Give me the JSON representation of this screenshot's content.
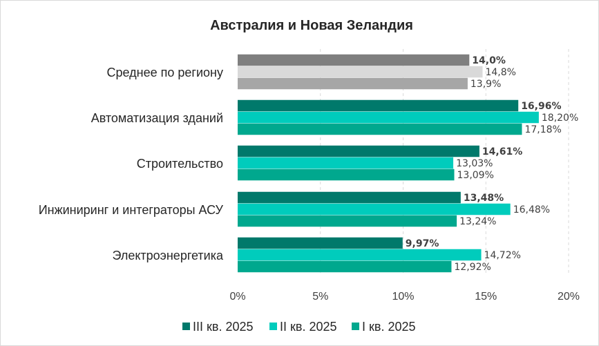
{
  "chart_data": {
    "type": "bar",
    "orientation": "horizontal",
    "title": "Австралия и Новая Зеландия",
    "categories": [
      "Среднее по региону",
      "Автоматизация зданий",
      "Строительство",
      "Инжиниринг и интеграторы АСУ",
      "Электроэнергетика"
    ],
    "series": [
      {
        "name": "III кв. 2025",
        "bold_labels": true,
        "values": [
          14.0,
          16.96,
          14.61,
          13.48,
          9.97
        ],
        "labels": [
          "14,0%",
          "16,96%",
          "14,61%",
          "13,48%",
          "9,97%"
        ]
      },
      {
        "name": "II кв. 2025",
        "bold_labels": false,
        "values": [
          14.8,
          18.2,
          13.03,
          16.48,
          14.72
        ],
        "labels": [
          "14,8%",
          "18,20%",
          "13,03%",
          "16,48%",
          "14,72%"
        ]
      },
      {
        "name": "I кв. 2025",
        "bold_labels": false,
        "values": [
          13.9,
          17.18,
          13.09,
          13.24,
          12.92
        ],
        "labels": [
          "13,9%",
          "17,18%",
          "13,09%",
          "13,24%",
          "12,92%"
        ]
      }
    ],
    "xlim": [
      0,
      20
    ],
    "xticks": [
      0,
      5,
      10,
      15,
      20
    ],
    "xtick_labels": [
      "0%",
      "5%",
      "10%",
      "15%",
      "20%"
    ],
    "grid": "vertical-dashed",
    "legend_position": "bottom",
    "colors": {
      "series": [
        "#00796b",
        "#00ccbc",
        "#00a88e"
      ],
      "regional_average": [
        "#7f7f7f",
        "#d9d9d9",
        "#a6a6a6"
      ]
    }
  }
}
